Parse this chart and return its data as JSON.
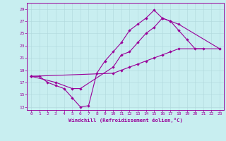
{
  "xlabel": "Windchill (Refroidissement éolien,°C)",
  "xlim": [
    -0.5,
    23.5
  ],
  "ylim": [
    12.5,
    30.0
  ],
  "xticks": [
    0,
    1,
    2,
    3,
    4,
    5,
    6,
    7,
    8,
    9,
    10,
    11,
    12,
    13,
    14,
    15,
    16,
    17,
    18,
    19,
    20,
    21,
    22,
    23
  ],
  "yticks": [
    13,
    15,
    17,
    19,
    21,
    23,
    25,
    27,
    29
  ],
  "bg_color": "#c8eef0",
  "line_color": "#990099",
  "grid_color": "#b0d8dc",
  "line1_x": [
    0,
    1,
    2,
    3,
    4,
    5,
    6,
    7,
    8,
    9,
    10,
    11,
    12,
    13,
    14,
    15,
    16,
    17,
    18,
    19,
    20,
    21
  ],
  "line1_y": [
    18.0,
    18.0,
    17.0,
    16.5,
    16.0,
    14.5,
    13.0,
    13.2,
    18.5,
    20.5,
    22.0,
    23.5,
    25.5,
    26.5,
    27.5,
    28.8,
    27.5,
    27.0,
    25.5,
    24.0,
    22.5,
    22.5
  ],
  "line2_x": [
    0,
    3,
    5,
    6,
    10,
    11,
    12,
    13,
    14,
    15,
    16,
    17,
    18,
    23
  ],
  "line2_y": [
    18.0,
    17.0,
    16.0,
    16.0,
    19.5,
    21.5,
    22.0,
    23.5,
    25.0,
    26.0,
    27.5,
    27.0,
    26.5,
    22.5
  ],
  "line3_x": [
    0,
    10,
    11,
    12,
    13,
    14,
    15,
    16,
    17,
    18,
    23
  ],
  "line3_y": [
    18.0,
    18.5,
    19.0,
    19.5,
    20.0,
    20.5,
    21.0,
    21.5,
    22.0,
    22.5,
    22.5
  ]
}
